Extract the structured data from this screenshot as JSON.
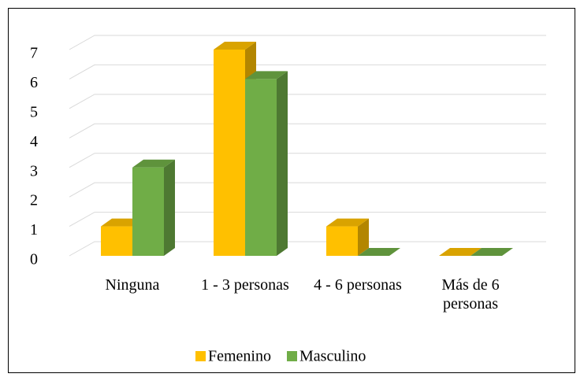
{
  "chart_data": {
    "type": "bar3d",
    "categories": [
      "Ninguna",
      "1 - 3 personas",
      "4 - 6 personas",
      "Más de 6 personas"
    ],
    "series": [
      {
        "name": "Femenino",
        "color": "#ffc000",
        "values": [
          1,
          7,
          1,
          0
        ]
      },
      {
        "name": "Masculino",
        "color": "#70ad47",
        "values": [
          3,
          6,
          0,
          0
        ]
      }
    ],
    "ylim": [
      0,
      7
    ],
    "yticks": [
      0,
      1,
      2,
      3,
      4,
      5,
      6,
      7
    ],
    "grid": true,
    "legend": "bottom"
  }
}
